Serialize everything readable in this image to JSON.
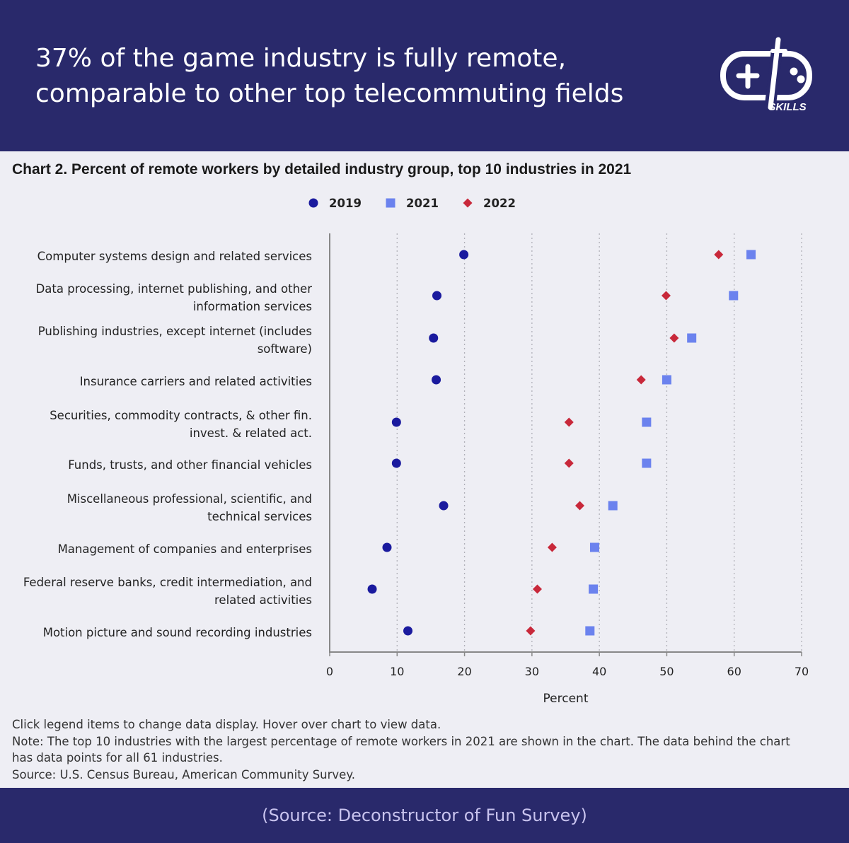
{
  "header": {
    "headline_line1": "37% of the game industry is fully remote,",
    "headline_line2": "comparable to other top telecommuting fields",
    "logo_text": "SKILLS"
  },
  "chart_data": {
    "type": "scatter",
    "title": "Chart 2. Percent of remote workers by detailed industry group, top 10 industries in 2021",
    "xlabel": "Percent",
    "xlim": [
      0,
      70
    ],
    "xticks": [
      0,
      10,
      20,
      30,
      40,
      50,
      60,
      70
    ],
    "grid": "vertical dotted",
    "legend_position": "top-center",
    "categories": [
      [
        "Computer systems design and related services"
      ],
      [
        "Data processing, internet publishing, and other",
        "information services"
      ],
      [
        "Publishing industries, except internet (includes",
        "software)"
      ],
      [
        "Insurance carriers and related activities"
      ],
      [
        "Securities, commodity contracts, & other fin.",
        "invest. & related act."
      ],
      [
        "Funds, trusts, and other financial vehicles"
      ],
      [
        "Miscellaneous professional, scientific, and",
        "technical services"
      ],
      [
        "Management of companies and enterprises"
      ],
      [
        "Federal reserve banks, credit intermediation, and",
        "related activities"
      ],
      [
        "Motion picture and sound recording industries"
      ]
    ],
    "series": [
      {
        "name": "2019",
        "marker": "circle",
        "color": "#1a1a9e",
        "values": [
          19.9,
          15.9,
          15.4,
          15.8,
          9.9,
          9.9,
          16.9,
          8.5,
          6.3,
          11.6
        ]
      },
      {
        "name": "2021",
        "marker": "square",
        "color": "#6b82ee",
        "values": [
          62.5,
          59.9,
          53.7,
          50.0,
          47.0,
          47.0,
          42.0,
          39.3,
          39.1,
          38.6
        ]
      },
      {
        "name": "2022",
        "marker": "diamond",
        "color": "#c8283a",
        "values": [
          57.7,
          49.9,
          51.1,
          46.2,
          35.5,
          35.5,
          37.1,
          33.0,
          30.8,
          29.8
        ]
      }
    ]
  },
  "notes": {
    "line1": "Click legend items to change data display. Hover over chart to view data.",
    "line2": "Note: The top 10 industries with the largest percentage of remote workers in 2021 are shown in the chart. The data behind the chart has data points for all 61 industries.",
    "line3": "Source: U.S. Census Bureau, American Community Survey."
  },
  "footer": {
    "source": "(Source: Deconstructor of Fun Survey)"
  }
}
